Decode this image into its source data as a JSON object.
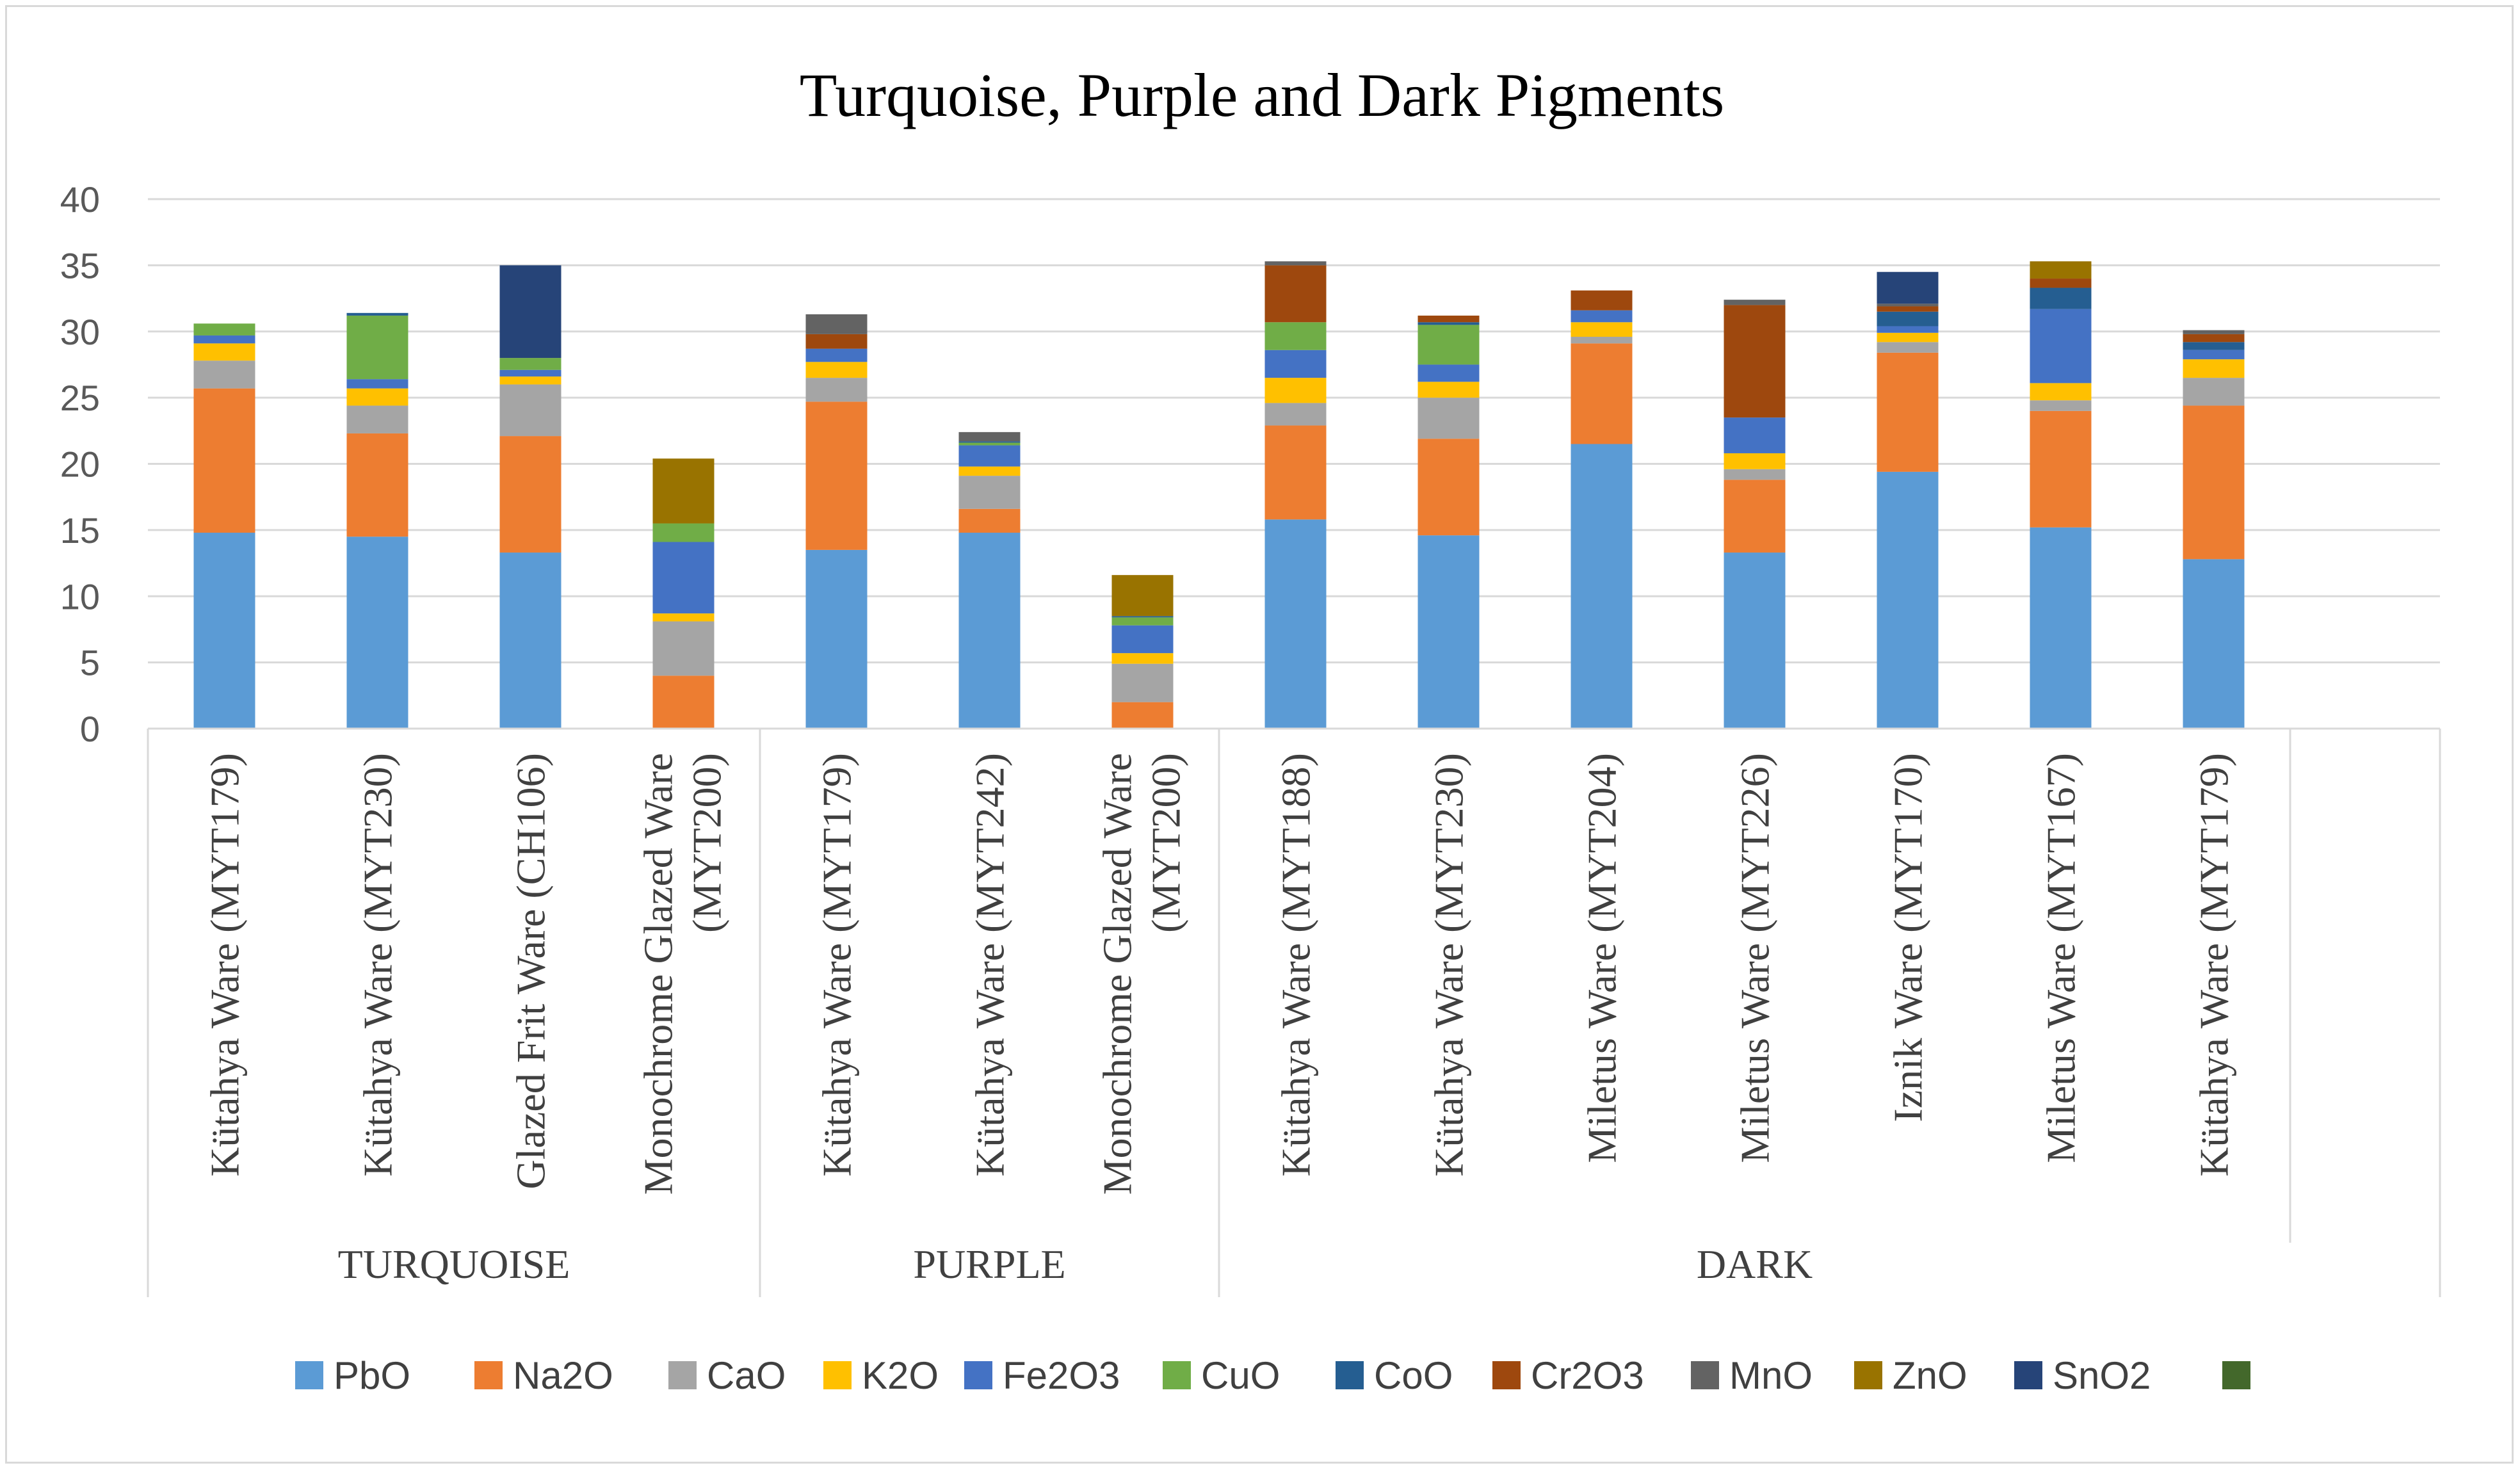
{
  "chart_data": {
    "type": "bar",
    "stacked": true,
    "title": "Turquoise, Purple and Dark Pigments",
    "xlabel": "",
    "ylabel": "",
    "ylim": [
      0,
      40
    ],
    "yticks": [
      0,
      5,
      10,
      15,
      20,
      25,
      30,
      35,
      40
    ],
    "grid": true,
    "legend_position": "bottom",
    "categories": [
      "Kütahya Ware (MYT179)",
      "Kütahya Ware (MYT230)",
      "Glazed Frit Ware (CH106)",
      "Monochrome Glazed Ware (MYT200)",
      "Kütahya Ware (MYT179)",
      "Kütahya Ware (MYT242)",
      "Monochrome Glazed Ware (MYT200)",
      "Kütahya Ware (MYT188)",
      "Kütahya Ware (MYT230)",
      "Miletus Ware (MYT204)",
      "Miletus Ware (MYT226)",
      "Iznik Ware (MYT170)",
      "Miletus Ware (MYT167)",
      "Kütahya Ware (MYT179)"
    ],
    "groups": [
      {
        "label": "TURQUOISE",
        "count": 4
      },
      {
        "label": "PURPLE",
        "count": 3
      },
      {
        "label": "DARK",
        "count": 7
      }
    ],
    "series": [
      {
        "name": "PbO",
        "color": "#5b9bd5",
        "values": [
          14.8,
          14.5,
          13.3,
          0,
          13.5,
          14.8,
          0,
          15.8,
          14.6,
          21.5,
          13.3,
          19.4,
          15.2,
          12.8
        ]
      },
      {
        "name": "Na2O",
        "color": "#ed7d31",
        "values": [
          10.9,
          7.8,
          8.8,
          4.0,
          11.2,
          1.8,
          2.0,
          7.1,
          7.3,
          7.6,
          5.5,
          9.0,
          8.8,
          11.6
        ]
      },
      {
        "name": "CaO",
        "color": "#a5a5a5",
        "values": [
          2.1,
          2.1,
          3.9,
          4.1,
          1.8,
          2.5,
          2.9,
          1.7,
          3.1,
          0.5,
          0.8,
          0.8,
          0.8,
          2.1
        ]
      },
      {
        "name": "K2O",
        "color": "#ffc000",
        "values": [
          1.3,
          1.3,
          0.6,
          0.6,
          1.2,
          0.7,
          0.8,
          1.9,
          1.2,
          1.1,
          1.2,
          0.7,
          1.3,
          1.4
        ]
      },
      {
        "name": "Fe2O3",
        "color": "#4472c4",
        "values": [
          0.6,
          0.7,
          0.5,
          5.4,
          1.0,
          1.6,
          2.1,
          2.1,
          1.3,
          0.9,
          2.7,
          0.5,
          5.6,
          0.7
        ]
      },
      {
        "name": "CuO",
        "color": "#70ad47",
        "values": [
          0.9,
          4.8,
          0.9,
          1.4,
          0,
          0.2,
          0.6,
          2.1,
          3.0,
          0,
          0,
          0,
          0,
          0
        ]
      },
      {
        "name": "CoO",
        "color": "#255e91",
        "values": [
          0,
          0.2,
          0,
          0,
          0,
          0.1,
          0.1,
          0,
          0.2,
          0,
          0,
          1.1,
          1.6,
          0.6
        ]
      },
      {
        "name": "Cr2O3",
        "color": "#9e480e",
        "values": [
          0,
          0,
          0,
          0,
          1.1,
          0,
          0,
          4.3,
          0.5,
          1.5,
          8.5,
          0.4,
          0.7,
          0.6
        ]
      },
      {
        "name": "MnO",
        "color": "#636363",
        "values": [
          0,
          0,
          0,
          0,
          1.5,
          0.7,
          0,
          0.3,
          0,
          0,
          0.4,
          0.2,
          0,
          0.3
        ]
      },
      {
        "name": "ZnO",
        "color": "#997300",
        "values": [
          0,
          0,
          0,
          4.9,
          0,
          0,
          3.1,
          0,
          0,
          0,
          0,
          0,
          1.3,
          0
        ]
      },
      {
        "name": "SnO2",
        "color": "#264478",
        "values": [
          0,
          0,
          7.0,
          0,
          0,
          0,
          0,
          0,
          0,
          0,
          0,
          2.4,
          0,
          0
        ]
      },
      {
        "name": "",
        "color": "#43682b",
        "values": [
          0,
          0,
          0,
          0,
          0,
          0,
          0,
          0,
          0,
          0,
          0,
          0,
          0,
          0
        ]
      }
    ]
  }
}
